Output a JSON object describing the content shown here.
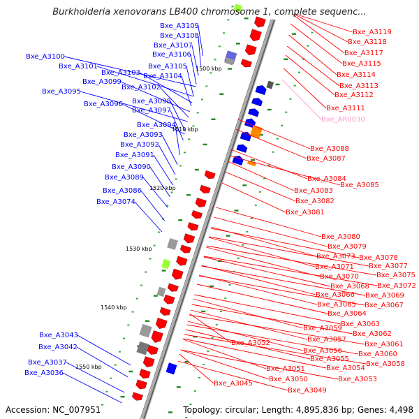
{
  "title": "Burkholderia xenovorans LB400 chromosome 1, complete sequenc...",
  "footer": {
    "accession": "Accession: NC_007951",
    "topology": "Topology: circular; Length: 4,895,836 bp; Genes: 4,498"
  },
  "colors": {
    "forward": "#ff0000",
    "reverse": "#0000ff",
    "rna": "#ff99cc",
    "gray": "#999999",
    "orange": "#ff8800",
    "green": "#228822",
    "lime": "#99ff33",
    "purple": "#6666dd"
  },
  "kbp_ticks": [
    "1500 kbp",
    "1510 kbp",
    "1520 kbp",
    "1530 kbp",
    "1540 kbp",
    "1550 kbp"
  ],
  "left_labels": [
    "Bxe_A3109",
    "Bxe_A3108",
    "Bxe_A3107",
    "Bxe_A3106",
    "Bxe_A3100",
    "Bxe_A3105",
    "Bxe_A3101",
    "Bxe_A3103",
    "Bxe_A3104",
    "Bxe_A3099",
    "Bxe_A3102",
    "Bxe_A3095",
    "Bxe_A3098",
    "Bxe_A3096",
    "Bxe_A3097",
    "Bxe_A3094",
    "Bxe_A3093",
    "Bxe_A3092",
    "Bxe_A3091",
    "Bxe_A3090",
    "Bxe_A3089",
    "Bxe_A3086",
    "Bxe_A3074",
    "Bxe_A3043",
    "Bxe_A3042",
    "Bxe_A3037",
    "Bxe_A3036"
  ],
  "right_labels": [
    "Bxe_A3119",
    "Bxe_A3118",
    "Bxe_A3117",
    "Bxe_A3115",
    "Bxe_A3114",
    "Bxe_A3113",
    "Bxe_A3112",
    "Bxe_A3111",
    "Bxe_AR0030",
    "Bxe_A3088",
    "Bxe_A3087",
    "Bxe_A3084",
    "Bxe_A3085",
    "Bxe_A3083",
    "Bxe_A3082",
    "Bxe_A3081",
    "Bxe_A3080",
    "Bxe_A3079",
    "Bxe_A3073",
    "Bxe_A3078",
    "Bxe_A3071",
    "Bxe_A3077",
    "Bxe_A3070",
    "Bxe_A3075",
    "Bxe_A3068",
    "Bxe_A3072",
    "Bxe_A3066",
    "Bxe_A3069",
    "Bxe_A3065",
    "Bxe_A3067",
    "Bxe_A3064",
    "Bxe_A3063",
    "Bxe_A3059",
    "Bxe_A3062",
    "Bxe_A3057",
    "Bxe_A3061",
    "Bxe_A3052",
    "Bxe_A3056",
    "Bxe_A3060",
    "Bxe_A3055",
    "Bxe_A3058",
    "Bxe_A3054",
    "Bxe_A3051",
    "Bxe_A3053",
    "Bxe_A3050",
    "Bxe_A3045",
    "Bxe_A3049"
  ]
}
